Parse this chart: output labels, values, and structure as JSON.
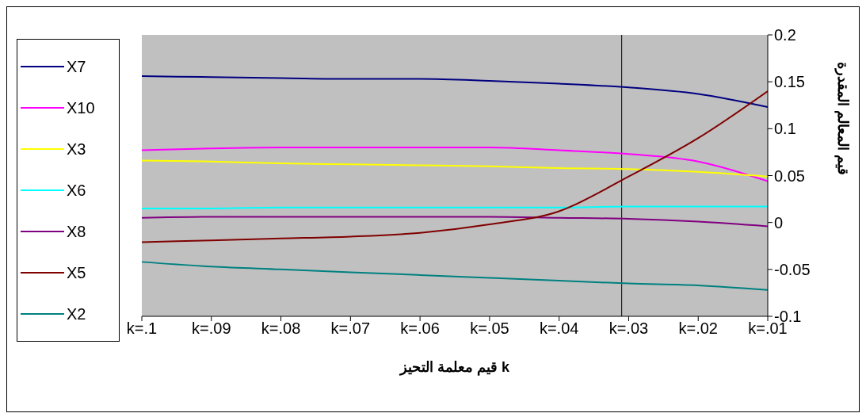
{
  "chart_data": {
    "type": "line",
    "xlabel": "قيم معلمة التحيز  k",
    "ylabel": "قيم المعالم المقدرة",
    "x": [
      0.1,
      0.09,
      0.08,
      0.07,
      0.06,
      0.05,
      0.04,
      0.03,
      0.02,
      0.01
    ],
    "xlim": [
      0.1,
      0.01
    ],
    "xticks": [
      {
        "value": 0.1,
        "label": "k=.1"
      },
      {
        "value": 0.09,
        "label": "k=.09"
      },
      {
        "value": 0.08,
        "label": "k=.08"
      },
      {
        "value": 0.07,
        "label": "k=.07"
      },
      {
        "value": 0.06,
        "label": "k=.06"
      },
      {
        "value": 0.05,
        "label": "k=.05"
      },
      {
        "value": 0.04,
        "label": "k=.04"
      },
      {
        "value": 0.03,
        "label": "k=.03"
      },
      {
        "value": 0.02,
        "label": "k=.02"
      },
      {
        "value": 0.01,
        "label": "k=.01"
      }
    ],
    "ylim": [
      -0.1,
      0.2
    ],
    "yticks": [
      -0.1,
      -0.05,
      0,
      0.05,
      0.1,
      0.15,
      0.2
    ],
    "series": [
      {
        "name": "X7",
        "color": "#000080",
        "values": [
          0.156,
          0.155,
          0.154,
          0.153,
          0.153,
          0.151,
          0.148,
          0.144,
          0.137,
          0.123
        ]
      },
      {
        "name": "X10",
        "color": "#ff00ff",
        "values": [
          0.077,
          0.079,
          0.08,
          0.08,
          0.08,
          0.08,
          0.077,
          0.073,
          0.065,
          0.044
        ]
      },
      {
        "name": "X3",
        "color": "#ffff00",
        "values": [
          0.066,
          0.065,
          0.063,
          0.062,
          0.061,
          0.06,
          0.058,
          0.057,
          0.054,
          0.049
        ]
      },
      {
        "name": "X6",
        "color": "#00ffff",
        "values": [
          0.015,
          0.015,
          0.016,
          0.016,
          0.016,
          0.016,
          0.016,
          0.017,
          0.017,
          0.017
        ]
      },
      {
        "name": "X8",
        "color": "#800080",
        "values": [
          0.005,
          0.006,
          0.006,
          0.006,
          0.006,
          0.006,
          0.005,
          0.004,
          0.001,
          -0.004
        ]
      },
      {
        "name": "X5",
        "color": "#800000",
        "values": [
          -0.021,
          -0.019,
          -0.017,
          -0.015,
          -0.011,
          -0.002,
          0.012,
          0.049,
          0.09,
          0.14
        ]
      },
      {
        "name": "X2",
        "color": "#008080",
        "values": [
          -0.042,
          -0.047,
          -0.05,
          -0.053,
          -0.056,
          -0.059,
          -0.062,
          -0.065,
          -0.067,
          -0.072
        ]
      }
    ],
    "ref_lines": [
      {
        "axis": "x",
        "value": 0.031,
        "color": "#000000"
      }
    ],
    "grid": false,
    "legend": "left",
    "marker": "none",
    "line_style": "solid"
  }
}
